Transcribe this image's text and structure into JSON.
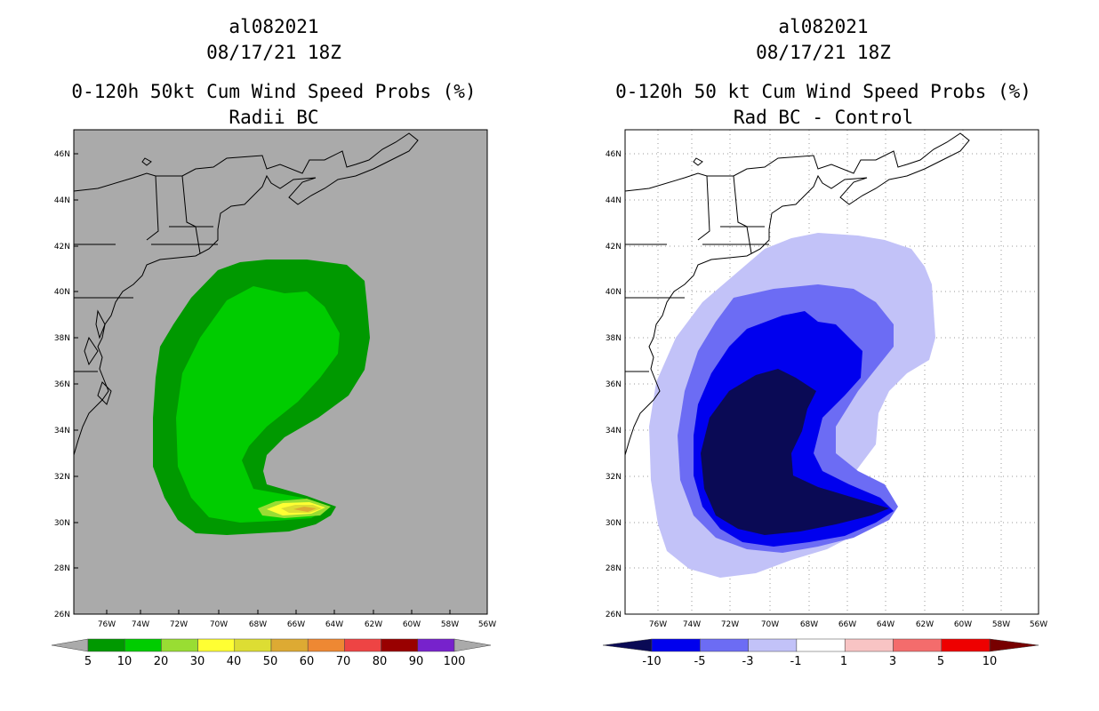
{
  "panels": [
    {
      "storm_id": "al082021",
      "datetime": "08/17/21 18Z",
      "title": "0-120h 50kt Cum Wind Speed Probs (%)",
      "subtitle": "Radii BC",
      "colorbar": {
        "labels": [
          "5",
          "10",
          "20",
          "30",
          "40",
          "50",
          "60",
          "70",
          "80",
          "90",
          "100"
        ],
        "colors": [
          "#009900",
          "#00cc00",
          "#99dd33",
          "#ffff33",
          "#dddd33",
          "#ddaa33",
          "#ee8833",
          "#ee4444",
          "#990000",
          "#7722cc"
        ]
      }
    },
    {
      "storm_id": "al082021",
      "datetime": "08/17/21 18Z",
      "title": "0-120h 50 kt Cum Wind Speed Probs (%)",
      "subtitle": "Rad BC - Control",
      "colorbar": {
        "labels": [
          "-10",
          "-5",
          "-3",
          "-1",
          "1",
          "3",
          "5",
          "10"
        ],
        "colors": [
          "#0a0a55",
          "#0000ee",
          "#6c6cf4",
          "#c2c2f8",
          "#ffffff",
          "#f8c4c4",
          "#f46c6c",
          "#ee0000",
          "#770000"
        ]
      }
    }
  ],
  "axes": {
    "lon_labels": [
      "76W",
      "74W",
      "72W",
      "70W",
      "68W",
      "66W",
      "64W",
      "62W",
      "60W",
      "58W",
      "56W"
    ],
    "lat_labels": [
      "46N",
      "44N",
      "42N",
      "40N",
      "38N",
      "36N",
      "34N",
      "32N",
      "30N",
      "28N",
      "26N"
    ]
  },
  "map_colors": {
    "background_left": "#aaaaaa",
    "background_right": "#ffffff",
    "coast": "#000000"
  }
}
